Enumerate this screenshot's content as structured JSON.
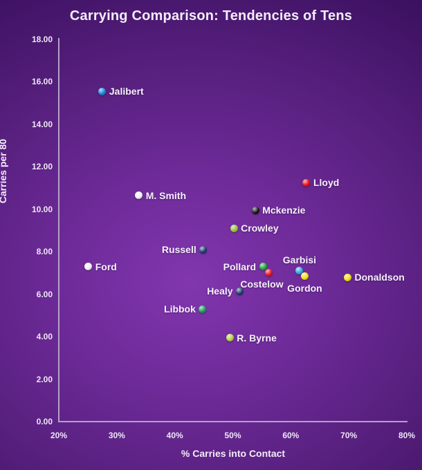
{
  "chart_data": {
    "type": "scatter",
    "title": "Carrying Comparison: Tendencies of Tens",
    "xlabel": "% Carries into Contact",
    "ylabel": "Carries per 80",
    "xlim": [
      20,
      80
    ],
    "ylim": [
      0,
      18
    ],
    "x_tick_values": [
      20,
      30,
      40,
      50,
      60,
      70,
      80
    ],
    "x_tick_labels": [
      "20%",
      "30%",
      "40%",
      "50%",
      "60%",
      "70%",
      "80%"
    ],
    "y_tick_values": [
      0,
      2,
      4,
      6,
      8,
      10,
      12,
      14,
      16,
      18
    ],
    "y_tick_labels": [
      "0.00",
      "2.00",
      "4.00",
      "6.00",
      "8.00",
      "10.00",
      "12.00",
      "14.00",
      "16.00",
      "18.00"
    ],
    "grid": false,
    "legend": "none",
    "marker_style": "3d-sphere",
    "background_color_center": "#7e35ad",
    "background_color_edge": "#220739",
    "points": [
      {
        "name": "Jalibert",
        "x": 27.5,
        "y": 15.55,
        "color": "#1e82d2",
        "label_pos": "right"
      },
      {
        "name": "M. Smith",
        "x": 33.8,
        "y": 10.65,
        "color": "#f2f2f2",
        "label_pos": "right"
      },
      {
        "name": "Lloyd",
        "x": 62.7,
        "y": 11.25,
        "color": "#e8101f",
        "label_pos": "right"
      },
      {
        "name": "Mckenzie",
        "x": 53.9,
        "y": 9.95,
        "color": "#161616",
        "label_pos": "right"
      },
      {
        "name": "Crowley",
        "x": 50.2,
        "y": 9.1,
        "color": "#9ac43c",
        "label_pos": "right"
      },
      {
        "name": "Russell",
        "x": 44.9,
        "y": 8.1,
        "color": "#1f3a70",
        "label_pos": "left"
      },
      {
        "name": "Ford",
        "x": 25.1,
        "y": 7.3,
        "color": "#f2f2f2",
        "label_pos": "right"
      },
      {
        "name": "Pollard",
        "x": 55.2,
        "y": 7.3,
        "color": "#1fa83c",
        "label_pos": "left"
      },
      {
        "name": "Costelow",
        "x": 56.2,
        "y": 7.0,
        "color": "#e8101f",
        "label_pos": "below-left"
      },
      {
        "name": "Garbisi",
        "x": 61.5,
        "y": 7.1,
        "color": "#2fa8e0",
        "label_pos": "above"
      },
      {
        "name": "Gordon",
        "x": 62.4,
        "y": 6.85,
        "color": "#f0df12",
        "label_pos": "below"
      },
      {
        "name": "Donaldson",
        "x": 69.8,
        "y": 6.8,
        "color": "#f0df12",
        "label_pos": "right"
      },
      {
        "name": "Healy",
        "x": 51.2,
        "y": 6.15,
        "color": "#1f3a70",
        "label_pos": "left"
      },
      {
        "name": "Libbok",
        "x": 44.8,
        "y": 5.3,
        "color": "#18a05c",
        "label_pos": "left"
      },
      {
        "name": "R. Byrne",
        "x": 49.5,
        "y": 3.95,
        "color": "#b2d24e",
        "label_pos": "right"
      }
    ]
  }
}
